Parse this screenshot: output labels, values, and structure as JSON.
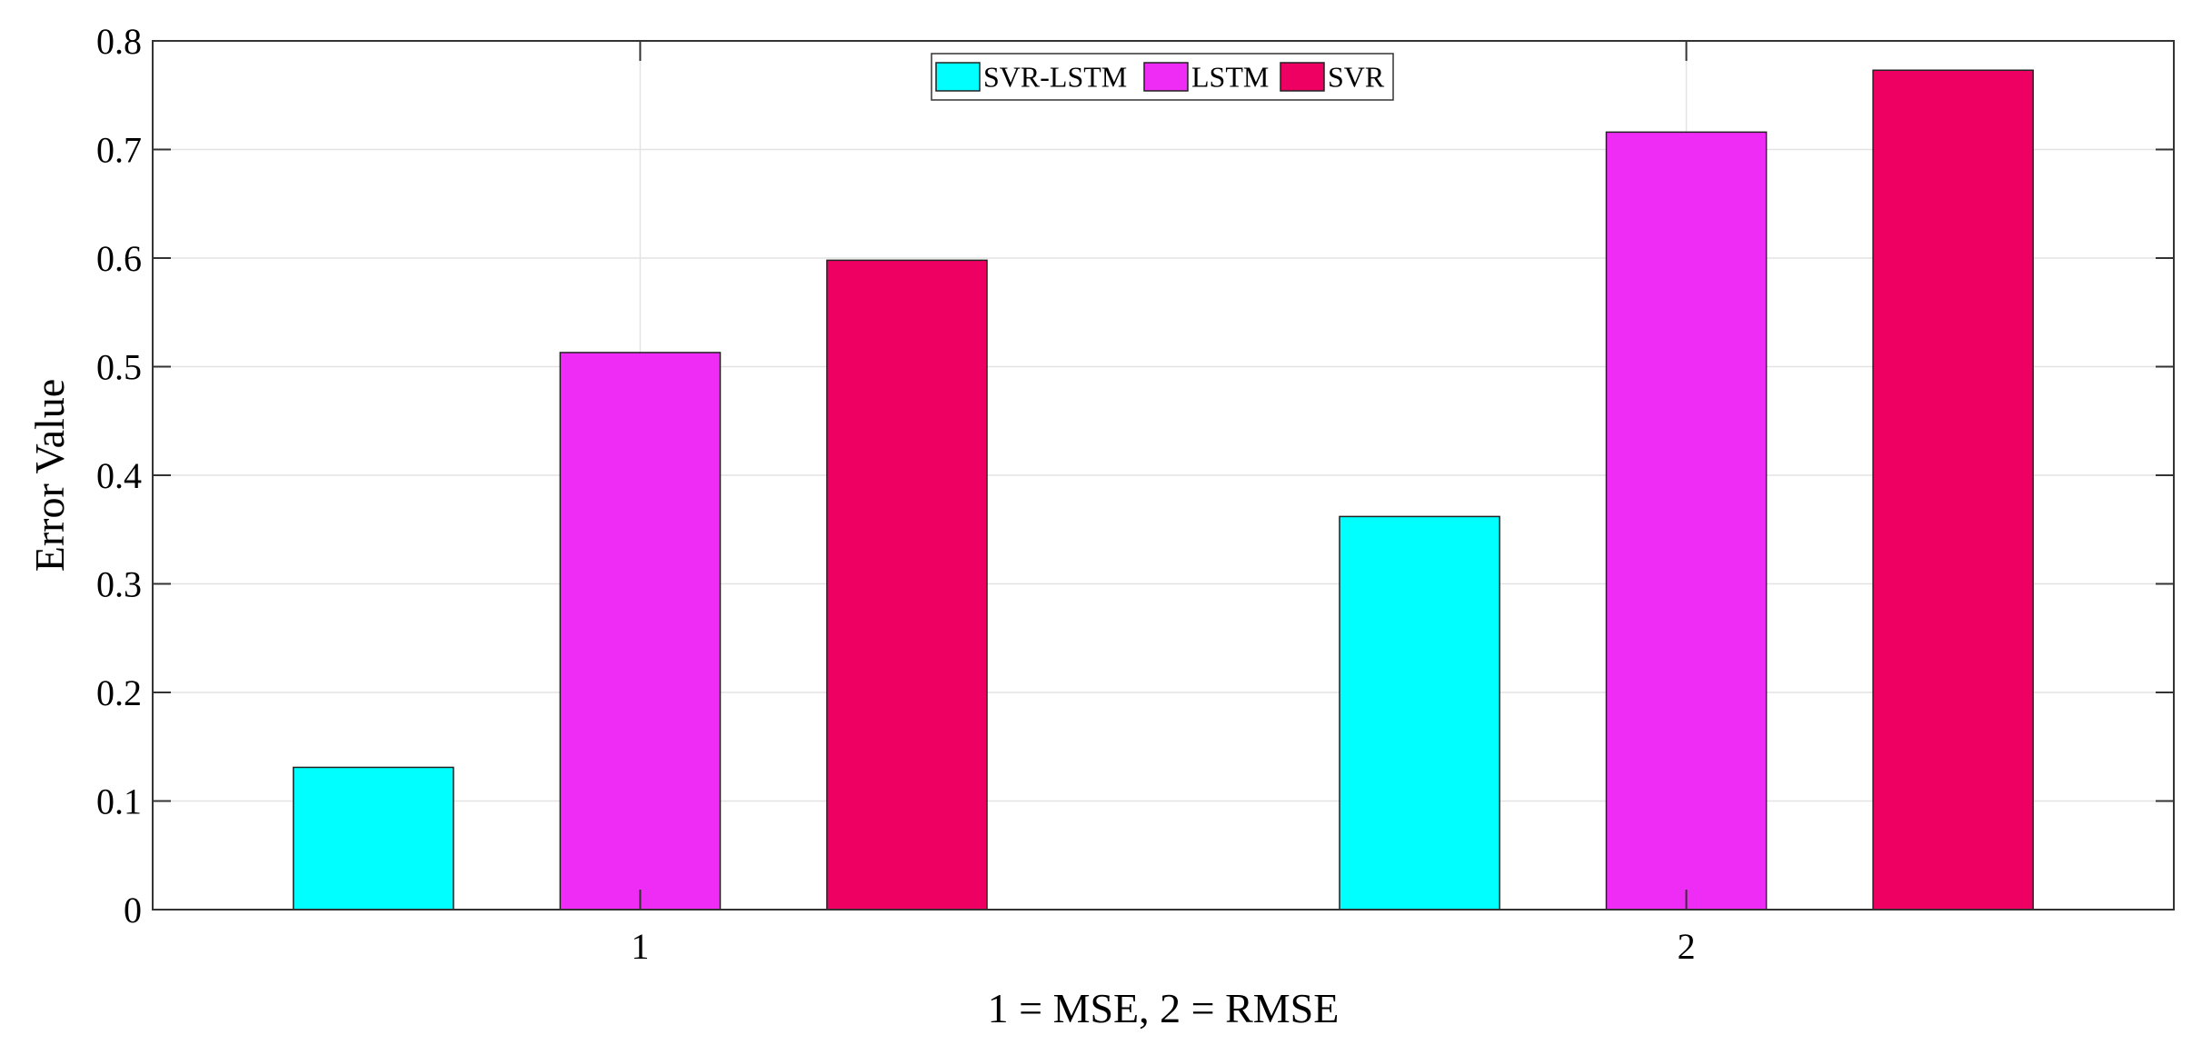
{
  "chart_data": {
    "type": "bar",
    "categories": [
      "1",
      "2"
    ],
    "series": [
      {
        "name": "SVR-LSTM",
        "color": "#00ffff",
        "values": [
          0.131,
          0.362
        ]
      },
      {
        "name": "LSTM",
        "color": "#ee2cf6",
        "values": [
          0.513,
          0.716
        ]
      },
      {
        "name": "SVR",
        "color": "#ee0063",
        "values": [
          0.598,
          0.773
        ]
      }
    ],
    "title": "",
    "xlabel": "1 = MSE, 2 = RMSE",
    "ylabel": "Error Value",
    "ylim": [
      0,
      0.8
    ],
    "yticks": [
      "0",
      "0.1",
      "0.2",
      "0.3",
      "0.4",
      "0.5",
      "0.6",
      "0.7",
      "0.8"
    ],
    "xticks": [
      "1",
      "2"
    ],
    "grid": true,
    "legend_position": "top-center"
  }
}
